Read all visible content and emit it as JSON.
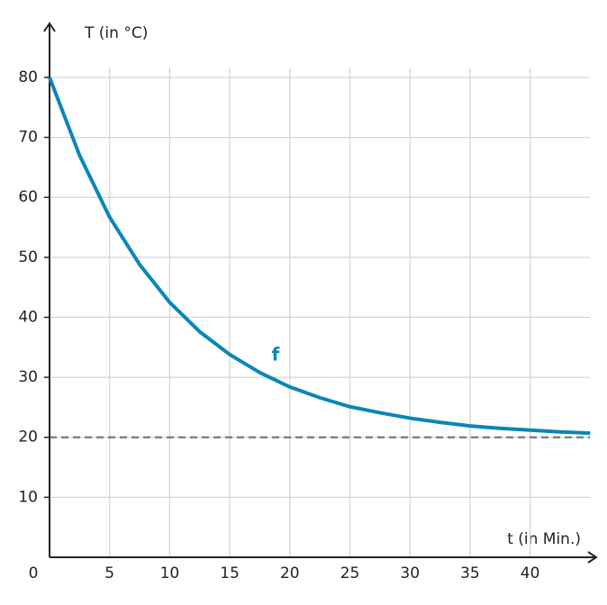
{
  "chart_data": {
    "type": "line",
    "y_label": "T (in °C)",
    "x_label": "t (in Min.)",
    "x": [
      0,
      2.5,
      5,
      7.5,
      10,
      12.5,
      15,
      17.5,
      20,
      22.5,
      25,
      27.5,
      30,
      32.5,
      35,
      37.5,
      40,
      42.5,
      45
    ],
    "series": [
      {
        "name": "f",
        "color": "#0a86b8",
        "values": [
          80,
          67.0,
          56.7,
          48.8,
          42.5,
          37.6,
          33.8,
          30.8,
          28.4,
          26.6,
          25.1,
          24.1,
          23.2,
          22.5,
          21.9,
          21.5,
          21.2,
          20.9,
          20.7
        ]
      }
    ],
    "asymptote": {
      "value": 20,
      "color": "#6e7b82"
    },
    "xlim": [
      0,
      45.5
    ],
    "ylim": [
      0,
      89
    ],
    "xticks": [
      0,
      5,
      10,
      15,
      20,
      25,
      30,
      35,
      40
    ],
    "yticks": [
      10,
      20,
      30,
      40,
      50,
      60,
      70,
      80
    ],
    "grid": true
  }
}
